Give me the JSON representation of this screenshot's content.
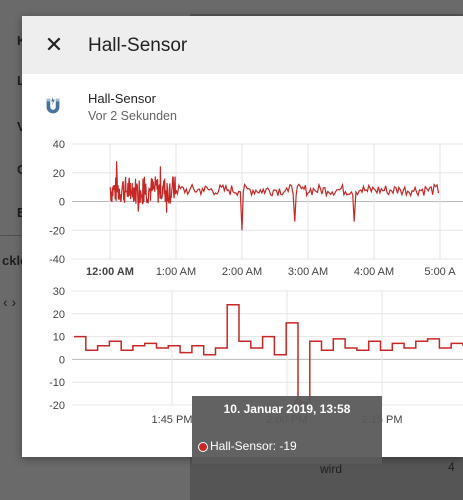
{
  "dialog": {
    "title": "Hall-Sensor",
    "close_icon": "close-icon"
  },
  "entity": {
    "icon": "magnet-icon",
    "name": "Hall-Sensor",
    "last_changed": "Vor 2 Sekunden"
  },
  "background": {
    "sidebar_letters": [
      "K",
      "L",
      "V",
      "C",
      "E"
    ],
    "sub_label": "ckler",
    "arrows": "‹ ›",
    "bottom_text": "wird",
    "bottom_num": "4"
  },
  "tooltip": {
    "title": "10. Januar 2019, 13:58",
    "label": "Hall-Sensor: -19"
  },
  "colors": {
    "series": "#c62828",
    "header_bg": "#eeeeee",
    "icon": "#44739e"
  },
  "chart_data": [
    {
      "type": "line",
      "y_ticks": [
        "40",
        "20",
        "0",
        "-20",
        "-40"
      ],
      "x_ticks": [
        "12:00 AM",
        "1:00 AM",
        "2:00 AM",
        "3:00 AM",
        "4:00 AM",
        "5:00 A"
      ],
      "ylim": [
        -40,
        40
      ],
      "grid": true,
      "series": [
        {
          "x_hours": [
            0.0,
            0.1,
            0.2,
            0.3,
            0.4,
            0.5,
            0.6,
            0.7,
            0.8,
            0.9,
            1.0,
            1.2,
            1.4,
            1.6,
            1.8,
            1.95,
            2.0,
            2.1,
            2.3,
            2.5,
            2.7,
            2.8,
            2.9,
            3.0,
            3.1,
            3.3,
            3.5,
            3.7,
            3.8,
            3.9,
            4.0,
            4.2,
            4.4,
            4.6,
            4.8,
            5.0
          ],
          "values": [
            10,
            28,
            14,
            4,
            12,
            16,
            8,
            15,
            11,
            9,
            8,
            7,
            9,
            6,
            8,
            7,
            -20,
            9,
            6,
            8,
            7,
            -14,
            9,
            6,
            8,
            7,
            9,
            -14,
            8,
            7,
            9,
            6,
            8,
            7,
            9,
            8
          ]
        }
      ]
    },
    {
      "type": "line",
      "step": true,
      "y_ticks": [
        "30",
        "20",
        "10",
        "0",
        "-10",
        "-20"
      ],
      "x_ticks": [
        "1:45 PM",
        "2:00 PM",
        "2:15 PM"
      ],
      "ylim": [
        -20,
        30
      ],
      "grid": true,
      "series": [
        {
          "x_index": [
            0,
            1,
            2,
            3,
            4,
            5,
            6,
            7,
            8,
            9,
            10,
            11,
            12,
            13,
            14,
            15,
            16,
            17,
            18,
            19,
            20,
            21,
            22,
            23,
            24,
            25,
            26,
            27,
            28,
            29,
            30,
            31,
            32,
            33
          ],
          "values": [
            10,
            4,
            6,
            8,
            4,
            6,
            7,
            5,
            6,
            3,
            6,
            2,
            5,
            24,
            8,
            5,
            10,
            2,
            16,
            -19,
            8,
            4,
            9,
            5,
            4,
            8,
            4,
            7,
            5,
            8,
            9,
            5,
            7,
            6
          ]
        }
      ],
      "highlight": {
        "x_index": 19,
        "value": -19
      }
    }
  ]
}
